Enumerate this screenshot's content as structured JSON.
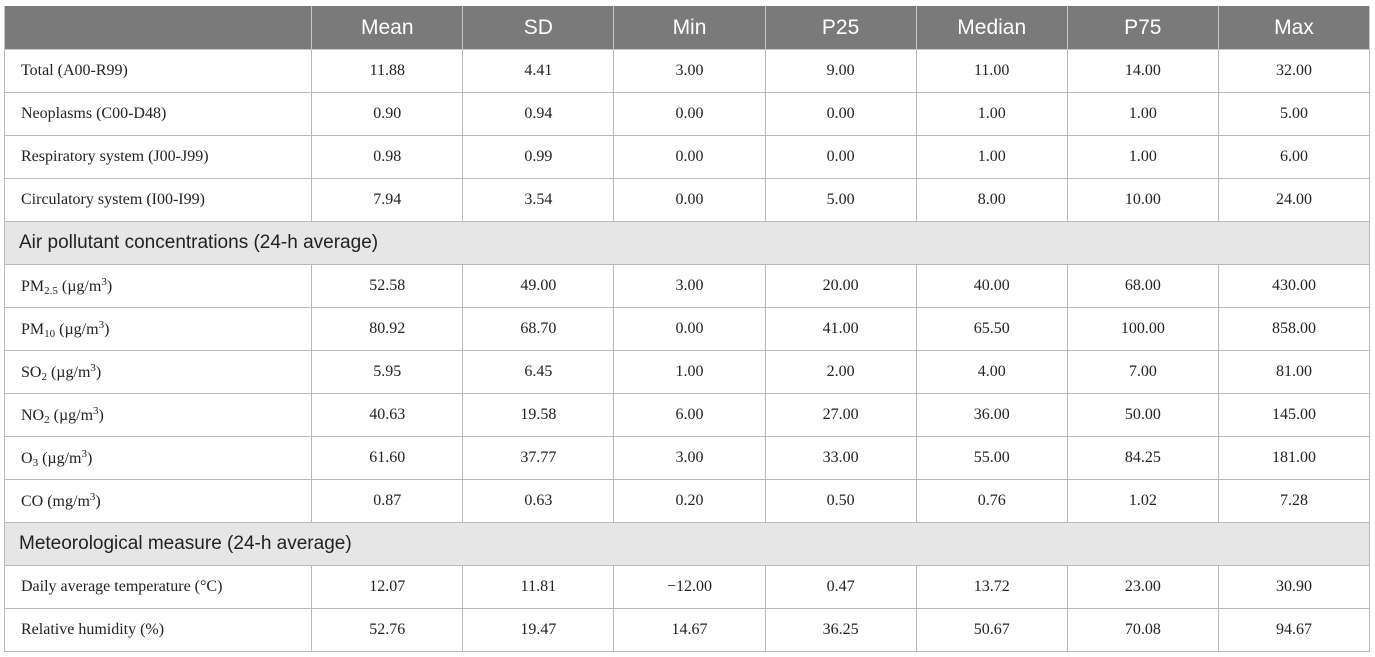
{
  "table": {
    "headers": [
      "",
      "Mean",
      "SD",
      "Min",
      "P25",
      "Median",
      "P75",
      "Max"
    ],
    "rows": [
      {
        "label": "Total (A00-R99)",
        "values": [
          "11.88",
          "4.41",
          "3.00",
          "9.00",
          "11.00",
          "14.00",
          "32.00"
        ]
      },
      {
        "label": "Neoplasms (C00-D48)",
        "values": [
          "0.90",
          "0.94",
          "0.00",
          "0.00",
          "1.00",
          "1.00",
          "5.00"
        ]
      },
      {
        "label": "Respiratory system (J00-J99)",
        "values": [
          "0.98",
          "0.99",
          "0.00",
          "0.00",
          "1.00",
          "1.00",
          "6.00"
        ]
      },
      {
        "label": "Circulatory system (I00-I99)",
        "values": [
          "7.94",
          "3.54",
          "0.00",
          "5.00",
          "8.00",
          "10.00",
          "24.00"
        ]
      },
      {
        "section": "Air pollutant concentrations (24-h average)"
      },
      {
        "label_parts": [
          "PM",
          "2.5",
          " (µg/m",
          "3",
          ")"
        ],
        "values": [
          "52.58",
          "49.00",
          "3.00",
          "20.00",
          "40.00",
          "68.00",
          "430.00"
        ]
      },
      {
        "label_parts": [
          "PM",
          "10",
          " (µg/m",
          "3",
          ")"
        ],
        "values": [
          "80.92",
          "68.70",
          "0.00",
          "41.00",
          "65.50",
          "100.00",
          "858.00"
        ]
      },
      {
        "label_parts": [
          "SO",
          "2",
          " (µg/m",
          "3",
          ")"
        ],
        "values": [
          "5.95",
          "6.45",
          "1.00",
          "2.00",
          "4.00",
          "7.00",
          "81.00"
        ]
      },
      {
        "label_parts": [
          "NO",
          "2",
          " (µg/m",
          "3",
          ")"
        ],
        "values": [
          "40.63",
          "19.58",
          "6.00",
          "27.00",
          "36.00",
          "50.00",
          "145.00"
        ]
      },
      {
        "label_parts": [
          "O",
          "3",
          " (µg/m",
          "3",
          ")"
        ],
        "values": [
          "61.60",
          "37.77",
          "3.00",
          "33.00",
          "55.00",
          "84.25",
          "181.00"
        ]
      },
      {
        "label_parts": [
          "CO (mg/m",
          "",
          "",
          "3",
          ")"
        ],
        "values": [
          "0.87",
          "0.63",
          "0.20",
          "0.50",
          "0.76",
          "1.02",
          "7.28"
        ]
      },
      {
        "section": "Meteorological measure (24-h average)"
      },
      {
        "label": "Daily average temperature (°C)",
        "values": [
          "12.07",
          "11.81",
          "−12.00",
          "0.47",
          "13.72",
          "23.00",
          "30.90"
        ]
      },
      {
        "label": "Relative humidity (%)",
        "values": [
          "52.76",
          "19.47",
          "14.67",
          "36.25",
          "50.67",
          "70.08",
          "94.67"
        ]
      }
    ]
  }
}
